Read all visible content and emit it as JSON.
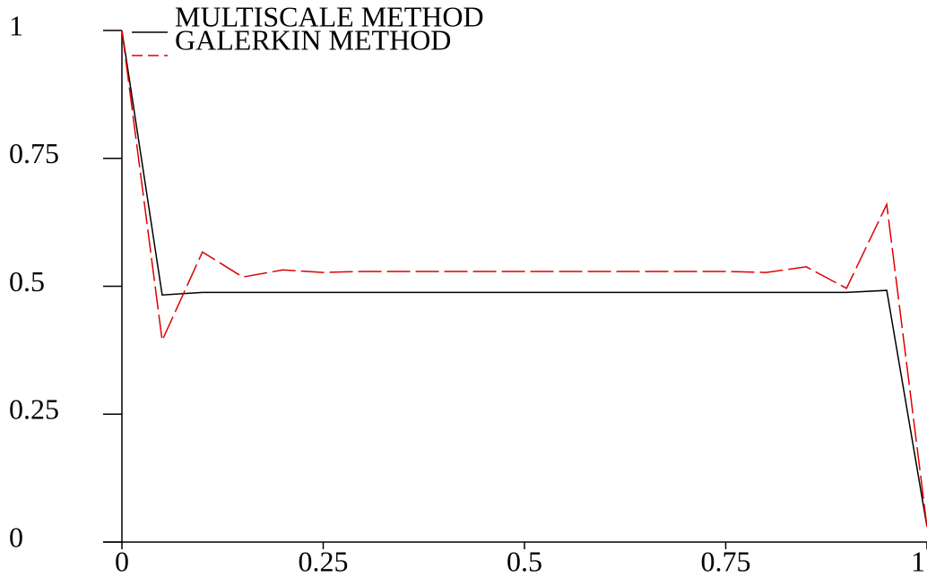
{
  "chart_data": {
    "type": "line",
    "x": [
      0,
      0.05,
      0.1,
      0.15,
      0.2,
      0.25,
      0.3,
      0.35,
      0.4,
      0.45,
      0.5,
      0.55,
      0.6,
      0.65,
      0.7,
      0.75,
      0.8,
      0.85,
      0.9,
      0.95,
      1
    ],
    "series": [
      {
        "name": "MULTISCALE METHOD",
        "color": "#000000",
        "dash": false,
        "values": [
          1,
          0.483,
          0.488,
          0.488,
          0.488,
          0.488,
          0.488,
          0.488,
          0.488,
          0.488,
          0.488,
          0.488,
          0.488,
          0.488,
          0.488,
          0.488,
          0.488,
          0.488,
          0.488,
          0.492,
          0.03
        ]
      },
      {
        "name": "GALERKIN METHOD",
        "color": "#dd0000",
        "dash": true,
        "values": [
          1,
          0.394,
          0.567,
          0.518,
          0.532,
          0.527,
          0.529,
          0.529,
          0.529,
          0.529,
          0.529,
          0.529,
          0.529,
          0.529,
          0.529,
          0.529,
          0.527,
          0.538,
          0.496,
          0.66,
          0.03
        ]
      }
    ],
    "xlim": [
      0,
      1
    ],
    "ylim": [
      0,
      1
    ],
    "xticks": [
      0,
      0.25,
      0.5,
      0.75,
      1
    ],
    "yticks": [
      0,
      0.25,
      0.5,
      0.75,
      1
    ],
    "grid": false,
    "legend": "upper-left"
  }
}
